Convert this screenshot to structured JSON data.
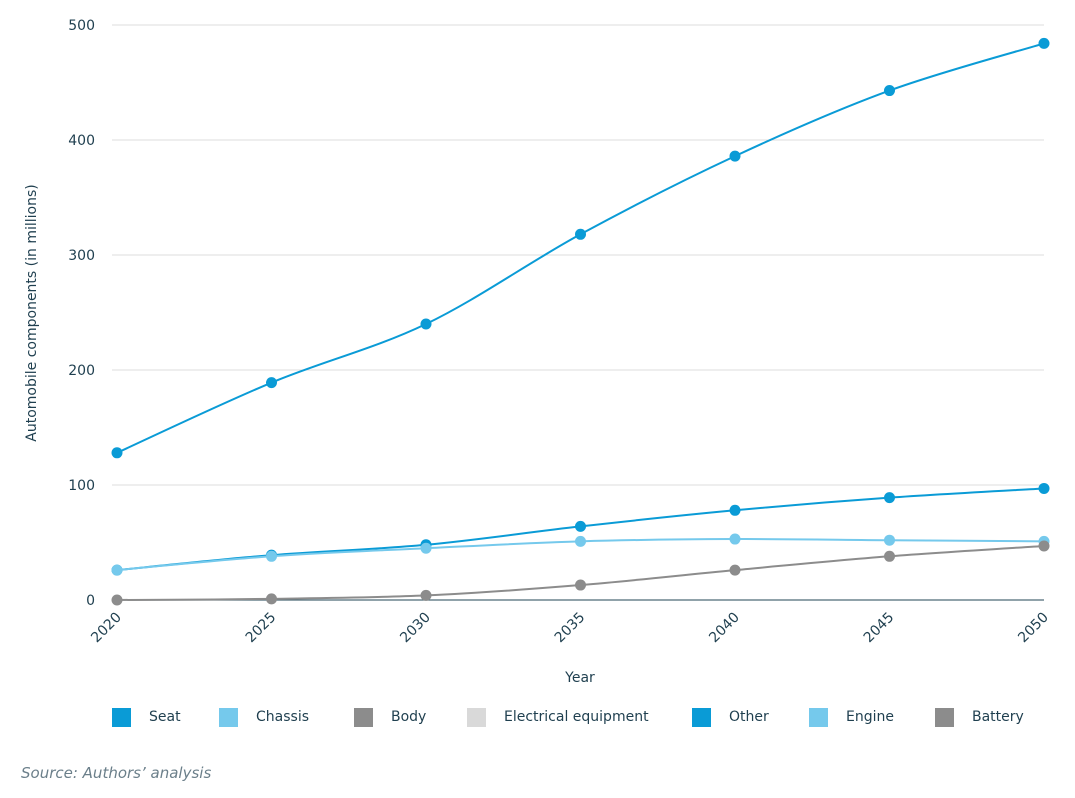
{
  "chart_data": {
    "type": "line",
    "xlabel": "Year",
    "ylabel": "Automobile components (in millions)",
    "x": [
      "2020",
      "2025",
      "2030",
      "2035",
      "2040",
      "2045",
      "2050"
    ],
    "ylim": [
      0,
      500
    ],
    "yticks": [
      0,
      100,
      200,
      300,
      400,
      500
    ],
    "grid": true,
    "legend_position": "bottom",
    "series": [
      {
        "name": "Seat",
        "color": "#0a9bd6",
        "values": [
          0,
          0,
          0,
          0,
          0,
          0,
          0
        ],
        "drawn": false
      },
      {
        "name": "Chassis",
        "color": "#75c9ec",
        "values": [
          0,
          0,
          0,
          0,
          0,
          0,
          0
        ],
        "drawn": false
      },
      {
        "name": "Body",
        "color": "#8c8c8c",
        "values": [
          0,
          0,
          0,
          0,
          0,
          0,
          0
        ],
        "drawn": false
      },
      {
        "name": "Electrical equipment",
        "color": "#d9d9d9",
        "values": [
          0,
          0,
          0,
          0,
          0,
          0,
          0
        ],
        "drawn": false
      },
      {
        "name": "Other",
        "color": "#0a9bd6",
        "values": [
          128,
          189,
          240,
          318,
          386,
          443,
          484
        ],
        "drawn": true
      },
      {
        "name": "Other",
        "color": "#0a9bd6",
        "values": [
          26,
          39,
          48,
          64,
          78,
          89,
          97
        ],
        "drawn": true
      },
      {
        "name": "Engine",
        "color": "#75c9ec",
        "values": [
          26,
          38,
          45,
          51,
          53,
          52,
          51
        ],
        "drawn": true
      },
      {
        "name": "Battery",
        "color": "#8c8c8c",
        "values": [
          0,
          1,
          4,
          13,
          26,
          38,
          47
        ],
        "drawn": true
      }
    ]
  },
  "legend": [
    {
      "label": "Seat",
      "color": "#0a9bd6"
    },
    {
      "label": "Chassis",
      "color": "#75c9ec"
    },
    {
      "label": "Body",
      "color": "#8c8c8c"
    },
    {
      "label": "Electrical equipment",
      "color": "#d9d9d9"
    },
    {
      "label": "Other",
      "color": "#0a9bd6"
    },
    {
      "label": "Engine",
      "color": "#75c9ec"
    },
    {
      "label": "Battery",
      "color": "#8c8c8c"
    }
  ],
  "source": "Source: Authors’ analysis"
}
